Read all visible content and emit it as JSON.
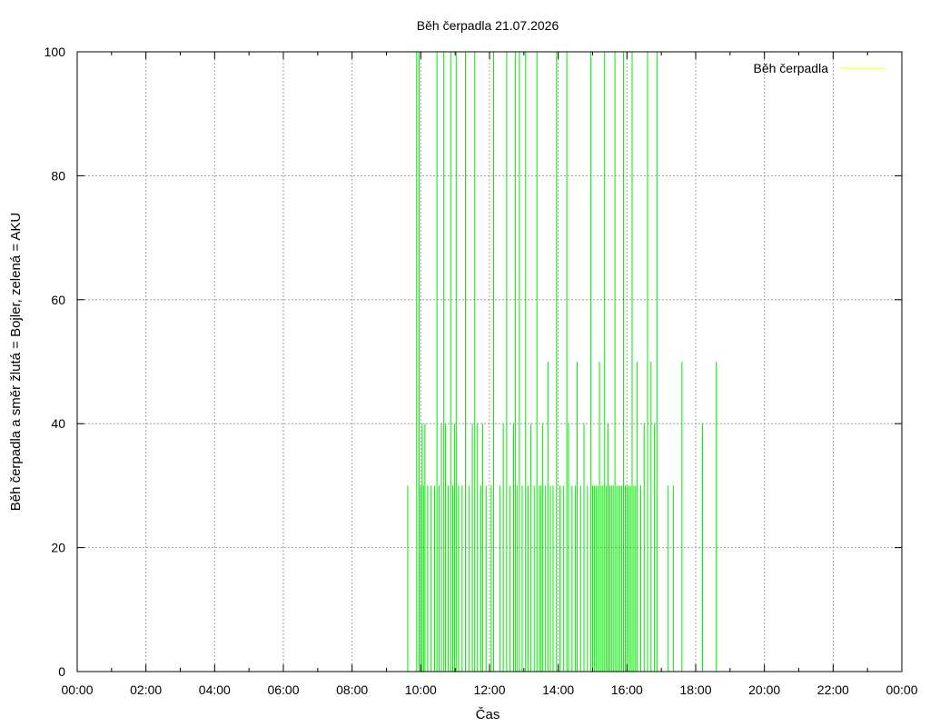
{
  "chart_data": {
    "type": "bar",
    "title": "Běh čerpadla 21.07.2026",
    "xlabel": "Čas",
    "ylabel": "Běh čerpadla a směr žlutá = Bojler, zelená = AKU",
    "xlim": [
      0,
      24
    ],
    "ylim": [
      0,
      100
    ],
    "grid": true,
    "legend_position": "top-right",
    "x_ticks": [
      "00:00",
      "02:00",
      "04:00",
      "06:00",
      "08:00",
      "10:00",
      "12:00",
      "14:00",
      "16:00",
      "18:00",
      "20:00",
      "22:00",
      "00:00"
    ],
    "y_ticks": [
      "0",
      "20",
      "40",
      "60",
      "80",
      "100"
    ],
    "legend": [
      {
        "name": "Běh čerpadla",
        "color": "#ffff00"
      }
    ],
    "series_color": "#00ee00",
    "series": [
      {
        "name": "Běh čerpadla",
        "color": "#00ee00",
        "x": [
          9.62,
          9.88,
          9.95,
          10.0,
          10.04,
          10.08,
          10.12,
          10.2,
          10.3,
          10.4,
          10.47,
          10.53,
          10.6,
          10.67,
          10.72,
          10.8,
          10.87,
          10.93,
          10.98,
          11.03,
          11.1,
          11.2,
          11.3,
          11.4,
          11.5,
          11.57,
          11.65,
          11.75,
          11.8,
          11.9,
          12.05,
          12.12,
          12.3,
          12.4,
          12.5,
          12.6,
          12.7,
          12.75,
          12.8,
          12.87,
          12.95,
          13.05,
          13.12,
          13.2,
          13.3,
          13.38,
          13.45,
          13.5,
          13.55,
          13.62,
          13.7,
          13.77,
          13.85,
          13.95,
          14.05,
          14.15,
          14.25,
          14.3,
          14.4,
          14.5,
          14.55,
          14.65,
          14.75,
          14.85,
          14.95,
          15.0,
          15.05,
          15.1,
          15.15,
          15.2,
          15.25,
          15.3,
          15.35,
          15.4,
          15.45,
          15.5,
          15.55,
          15.6,
          15.65,
          15.7,
          15.75,
          15.8,
          15.85,
          15.9,
          15.95,
          16.0,
          16.05,
          16.1,
          16.15,
          16.2,
          16.25,
          16.3,
          16.4,
          16.5,
          16.6,
          16.7,
          16.8,
          16.88,
          17.2,
          17.35,
          17.6,
          18.2,
          18.6
        ],
        "values": [
          30,
          100,
          100,
          30,
          40,
          30,
          40,
          30,
          30,
          30,
          100,
          30,
          40,
          100,
          40,
          30,
          100,
          30,
          40,
          100,
          30,
          30,
          100,
          30,
          40,
          100,
          40,
          30,
          40,
          30,
          30,
          100,
          30,
          40,
          100,
          30,
          40,
          100,
          30,
          100,
          30,
          100,
          30,
          40,
          30,
          100,
          30,
          30,
          40,
          30,
          50,
          30,
          30,
          100,
          30,
          30,
          100,
          40,
          30,
          30,
          50,
          30,
          40,
          30,
          100,
          30,
          30,
          30,
          30,
          50,
          30,
          30,
          100,
          30,
          40,
          30,
          30,
          30,
          100,
          30,
          30,
          30,
          30,
          100,
          30,
          30,
          30,
          30,
          100,
          30,
          30,
          50,
          30,
          40,
          100,
          50,
          40,
          100,
          30,
          30,
          50,
          40,
          50
        ]
      }
    ]
  }
}
